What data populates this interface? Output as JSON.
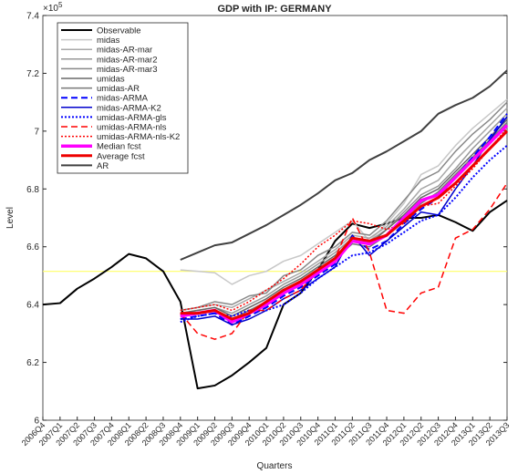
{
  "chart_data": {
    "type": "line",
    "title": "GDP with IP: GERMANY",
    "x_label": "Quarters",
    "y_label": "Level",
    "y_multiplier": {
      "base": "×10",
      "exponent": "5"
    },
    "categories": [
      "2006Q4",
      "2007Q1",
      "2007Q2",
      "2007Q3",
      "2007Q4",
      "2008Q1",
      "2008Q2",
      "2008Q3",
      "2008Q4",
      "2009Q1",
      "2009Q2",
      "2009Q3",
      "2009Q4",
      "2010Q1",
      "2010Q2",
      "2010Q3",
      "2010Q4",
      "2011Q1",
      "2011Q2",
      "2011Q3",
      "2011Q4",
      "2012Q1",
      "2012Q2",
      "2012Q3",
      "2012Q4",
      "2013Q1",
      "2013Q2",
      "2013Q3"
    ],
    "ylim": [
      6,
      7.4
    ],
    "yticks": [
      6,
      6.2,
      6.4,
      6.6,
      6.8,
      7,
      7.2,
      7.4
    ],
    "reference_line": {
      "value": 6.515,
      "color": "#ffff66"
    },
    "legend": "upper left",
    "series": [
      {
        "name": "Observable",
        "color": "#000000",
        "width": 2,
        "line_style": "solid",
        "values": [
          6.4,
          6.405,
          6.455,
          6.49,
          6.53,
          6.575,
          6.56,
          6.515,
          6.41,
          6.11,
          6.12,
          6.155,
          6.2,
          6.25,
          6.4,
          6.44,
          6.52,
          6.62,
          6.68,
          6.665,
          6.68,
          6.7,
          6.7,
          6.71,
          6.685,
          6.655,
          6.72,
          6.76
        ]
      },
      {
        "name": "midas",
        "color": "#c8c8c8",
        "width": 1.5,
        "line_style": "solid",
        "values": [
          null,
          null,
          null,
          null,
          null,
          null,
          null,
          null,
          6.52,
          6.515,
          6.51,
          6.47,
          6.5,
          6.515,
          6.55,
          6.57,
          6.61,
          6.65,
          6.69,
          6.62,
          6.68,
          6.75,
          6.85,
          6.88,
          6.95,
          7.01,
          7.06,
          7.11
        ]
      },
      {
        "name": "midas-AR-mar",
        "color": "#a8a8a8",
        "width": 1.5,
        "line_style": "solid",
        "values": [
          null,
          null,
          null,
          null,
          null,
          null,
          null,
          null,
          6.38,
          6.39,
          6.4,
          6.39,
          6.42,
          6.45,
          6.48,
          6.51,
          6.55,
          6.59,
          6.64,
          6.63,
          6.67,
          6.73,
          6.8,
          6.83,
          6.9,
          6.96,
          7.02,
          7.08
        ]
      },
      {
        "name": "midas-AR-mar2",
        "color": "#989898",
        "width": 1.5,
        "line_style": "solid",
        "values": [
          null,
          null,
          null,
          null,
          null,
          null,
          null,
          null,
          6.37,
          6.38,
          6.39,
          6.37,
          6.4,
          6.43,
          6.47,
          6.5,
          6.54,
          6.58,
          6.63,
          6.62,
          6.66,
          6.72,
          6.78,
          6.81,
          6.87,
          6.94,
          7.0,
          7.06
        ]
      },
      {
        "name": "midas-AR-mar3",
        "color": "#888888",
        "width": 1.5,
        "line_style": "solid",
        "values": [
          null,
          null,
          null,
          null,
          null,
          null,
          null,
          null,
          6.38,
          6.39,
          6.41,
          6.4,
          6.43,
          6.44,
          6.5,
          6.52,
          6.57,
          6.6,
          6.65,
          6.64,
          6.69,
          6.76,
          6.83,
          6.86,
          6.93,
          6.99,
          7.04,
          7.1
        ]
      },
      {
        "name": "umidas",
        "color": "#686868",
        "width": 1.5,
        "line_style": "solid",
        "values": [
          null,
          null,
          null,
          null,
          null,
          null,
          null,
          null,
          6.37,
          6.38,
          6.39,
          6.36,
          6.39,
          6.42,
          6.46,
          6.49,
          6.53,
          6.57,
          6.62,
          6.61,
          6.66,
          6.71,
          6.77,
          6.8,
          6.86,
          6.92,
          6.98,
          7.04
        ]
      },
      {
        "name": "umidas-AR",
        "color": "#787878",
        "width": 1.5,
        "line_style": "solid",
        "values": [
          null,
          null,
          null,
          null,
          null,
          null,
          null,
          null,
          6.36,
          6.37,
          6.38,
          6.35,
          6.38,
          6.41,
          6.45,
          6.48,
          6.52,
          6.56,
          6.61,
          6.6,
          6.64,
          6.7,
          6.75,
          6.79,
          6.85,
          6.91,
          6.97,
          7.03
        ]
      },
      {
        "name": "midas-ARMA",
        "color": "#0000ff",
        "width": 2,
        "line_style": "dashed",
        "values": [
          null,
          null,
          null,
          null,
          null,
          null,
          null,
          null,
          6.35,
          6.36,
          6.37,
          6.33,
          6.36,
          6.39,
          6.43,
          6.46,
          6.5,
          6.54,
          6.63,
          6.59,
          6.62,
          6.68,
          6.73,
          6.77,
          6.84,
          6.91,
          6.98,
          7.06
        ]
      },
      {
        "name": "midas-ARMA-K2",
        "color": "#0000cc",
        "width": 1.5,
        "line_style": "solid",
        "values": [
          null,
          null,
          null,
          null,
          null,
          null,
          null,
          null,
          6.35,
          6.35,
          6.36,
          6.33,
          6.35,
          6.38,
          6.42,
          6.45,
          6.49,
          6.53,
          6.64,
          6.57,
          6.62,
          6.67,
          6.72,
          6.71,
          6.8,
          6.88,
          6.97,
          7.05
        ]
      },
      {
        "name": "umidas-ARMA-gls",
        "color": "#0000ff",
        "width": 2,
        "line_style": "dotted",
        "values": [
          null,
          null,
          null,
          null,
          null,
          null,
          null,
          null,
          6.34,
          6.36,
          6.37,
          6.36,
          6.38,
          6.38,
          6.4,
          6.44,
          6.49,
          6.53,
          6.57,
          6.58,
          6.61,
          6.65,
          6.69,
          6.71,
          6.77,
          6.84,
          6.9,
          6.95
        ]
      },
      {
        "name": "umidas-ARMA-nls",
        "color": "#ff0000",
        "width": 1.5,
        "line_style": "dashed",
        "values": [
          null,
          null,
          null,
          null,
          null,
          null,
          null,
          null,
          6.37,
          6.3,
          6.28,
          6.3,
          6.38,
          6.38,
          6.42,
          6.45,
          6.52,
          6.56,
          6.7,
          6.58,
          6.38,
          6.37,
          6.44,
          6.46,
          6.63,
          6.66,
          6.73,
          6.82
        ]
      },
      {
        "name": "umidas-ARMA-nls-K2",
        "color": "#ff0000",
        "width": 1.5,
        "line_style": "dotted",
        "values": [
          null,
          null,
          null,
          null,
          null,
          null,
          null,
          null,
          6.38,
          6.39,
          6.4,
          6.38,
          6.41,
          6.45,
          6.49,
          6.54,
          6.6,
          6.64,
          6.69,
          6.68,
          6.66,
          6.68,
          6.74,
          6.75,
          6.81,
          6.87,
          6.94,
          7.01
        ]
      },
      {
        "name": "Median fcst",
        "color": "#ff00ff",
        "width": 3.5,
        "line_style": "solid",
        "values": [
          null,
          null,
          null,
          null,
          null,
          null,
          null,
          null,
          6.36,
          6.37,
          6.38,
          6.34,
          6.37,
          6.4,
          6.44,
          6.47,
          6.51,
          6.55,
          6.62,
          6.61,
          6.64,
          6.7,
          6.76,
          6.78,
          6.84,
          6.9,
          6.96,
          7.02
        ]
      },
      {
        "name": "Average fcst",
        "color": "#ee0000",
        "width": 3,
        "line_style": "solid",
        "values": [
          null,
          null,
          null,
          null,
          null,
          null,
          null,
          null,
          6.37,
          6.37,
          6.38,
          6.35,
          6.37,
          6.41,
          6.45,
          6.48,
          6.52,
          6.56,
          6.63,
          6.62,
          6.64,
          6.69,
          6.74,
          6.77,
          6.82,
          6.88,
          6.94,
          7.0
        ]
      },
      {
        "name": "AR",
        "color": "#404040",
        "width": 2,
        "line_style": "solid",
        "values": [
          null,
          null,
          null,
          null,
          null,
          null,
          null,
          null,
          6.555,
          6.58,
          6.605,
          6.615,
          6.645,
          6.675,
          6.71,
          6.745,
          6.785,
          6.83,
          6.855,
          6.9,
          6.93,
          6.965,
          7.0,
          7.06,
          7.09,
          7.115,
          7.155,
          7.21
        ]
      }
    ]
  }
}
